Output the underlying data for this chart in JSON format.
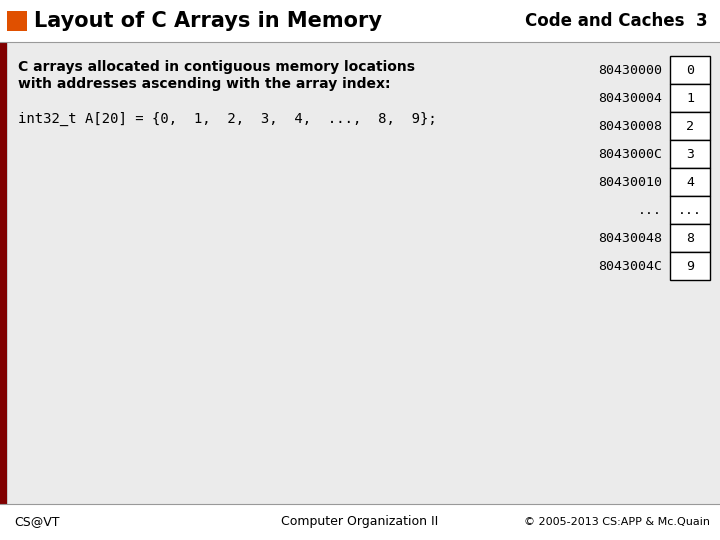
{
  "title": "Layout of C Arrays in Memory",
  "subtitle": "Code and Caches  3",
  "bg_color": "#e0e0e0",
  "title_bg": "#e05000",
  "left_bar_color": "#800000",
  "text_color": "#000000",
  "desc_text1": "C arrays allocated in contiguous memory locations",
  "desc_text2": "with addresses ascending with the array index:",
  "code_text": "int32_t A[20] = {0,  1,  2,  3,  4,  ...,  8,  9};",
  "addresses": [
    "80430000",
    "80430004",
    "80430008",
    "8043000C",
    "80430010",
    "...",
    "80430048",
    "8043004C"
  ],
  "values": [
    "0",
    "1",
    "2",
    "3",
    "4",
    "...",
    "8",
    "9"
  ],
  "footer_left": "CS@VT",
  "footer_center": "Computer Organization II",
  "footer_right": "© 2005-2013 CS:APP & Mc.Quain",
  "fig_w": 7.2,
  "fig_h": 5.4,
  "dpi": 100
}
